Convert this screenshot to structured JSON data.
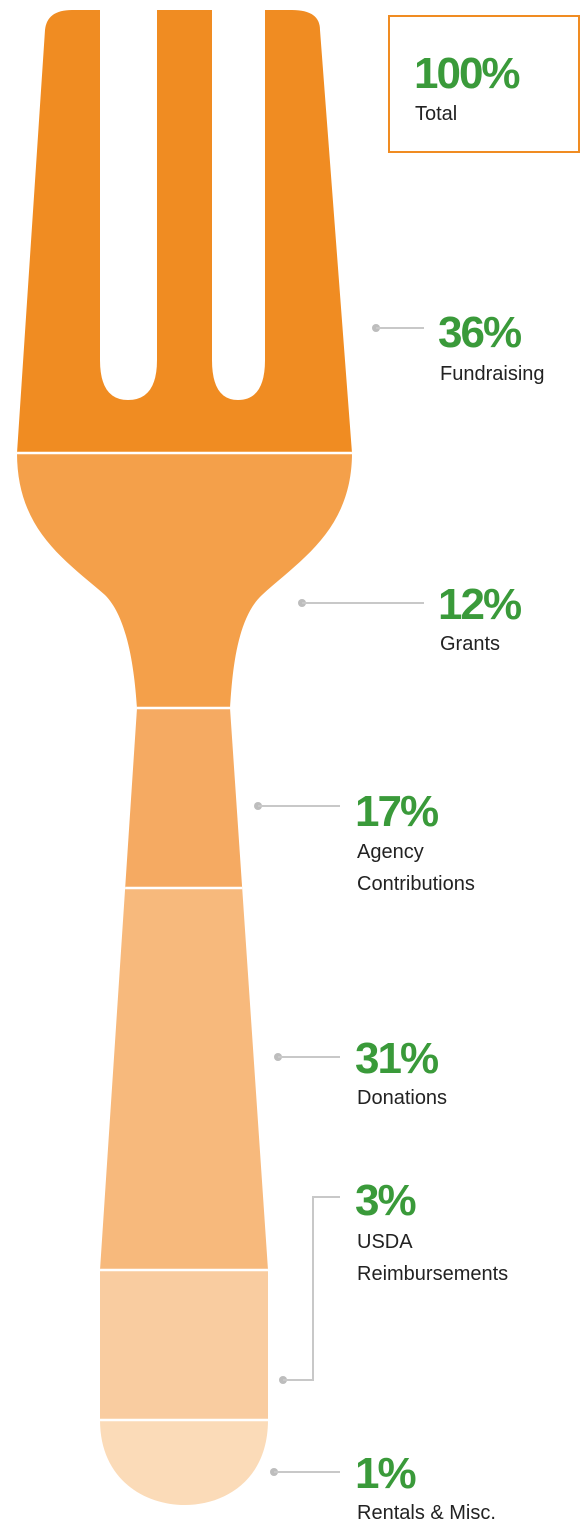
{
  "total": {
    "value": "100%",
    "label": "Total"
  },
  "segments": [
    {
      "value": "36%",
      "label": [
        "Fundraising"
      ]
    },
    {
      "value": "12%",
      "label": [
        "Grants"
      ]
    },
    {
      "value": "17%",
      "label": [
        "Agency",
        "Contributions"
      ]
    },
    {
      "value": "31%",
      "label": [
        "Donations"
      ]
    },
    {
      "value": "3%",
      "label": [
        "USDA",
        "Reimbursements"
      ]
    },
    {
      "value": "1%",
      "label": [
        "Rentals & Misc."
      ]
    }
  ]
}
